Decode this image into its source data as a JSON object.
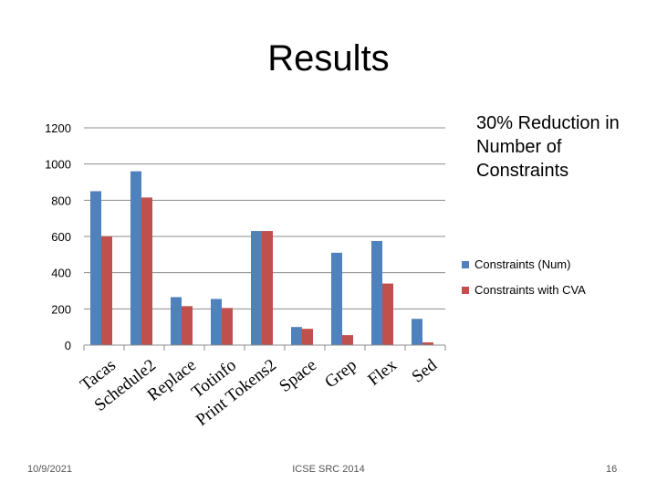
{
  "slide": {
    "title": "Results",
    "annotation": "30% Reduction in Number of Constraints",
    "footer_date": "10/9/2021",
    "footer_center": "ICSE SRC 2014",
    "page_number": "16"
  },
  "chart_data": {
    "type": "bar",
    "title": "",
    "xlabel": "",
    "ylabel": "",
    "categories": [
      "Tacas",
      "Schedule2",
      "Replace",
      "Totinfo",
      "Print Tokens2",
      "Space",
      "Grep",
      "Flex",
      "Sed"
    ],
    "series": [
      {
        "name": "Constraints (Num)",
        "color": "#4f81bd",
        "values": [
          850,
          960,
          265,
          255,
          630,
          100,
          510,
          575,
          145
        ]
      },
      {
        "name": "Constraints with CVA",
        "color": "#c0504d",
        "values": [
          600,
          815,
          215,
          205,
          630,
          90,
          55,
          340,
          15
        ]
      }
    ],
    "ylim": [
      0,
      1200
    ],
    "yticks": [
      0,
      200,
      400,
      600,
      800,
      1000,
      1200
    ],
    "grid": true,
    "legend": "right"
  }
}
